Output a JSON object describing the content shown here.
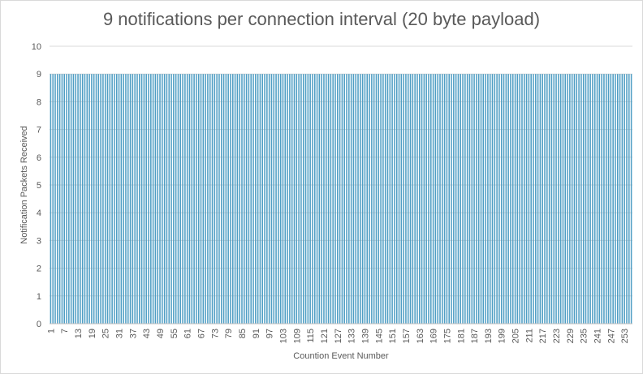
{
  "chart_data": {
    "type": "bar",
    "title": "9 notifications per connection interval (20 byte payload)",
    "xlabel": "Countion Event Number",
    "ylabel": "Notification Packets Received",
    "x_start": 1,
    "x_end": 256,
    "x_tick_step": 6,
    "constant_value": 9,
    "ylim": [
      0,
      10
    ],
    "y_ticks": [
      0,
      1,
      2,
      3,
      4,
      5,
      6,
      7,
      8,
      9,
      10
    ],
    "grid": true,
    "legend": "none",
    "colors": {
      "bar": "#4f9ec4",
      "grid": "#d9d9d9",
      "text": "#595959"
    }
  }
}
